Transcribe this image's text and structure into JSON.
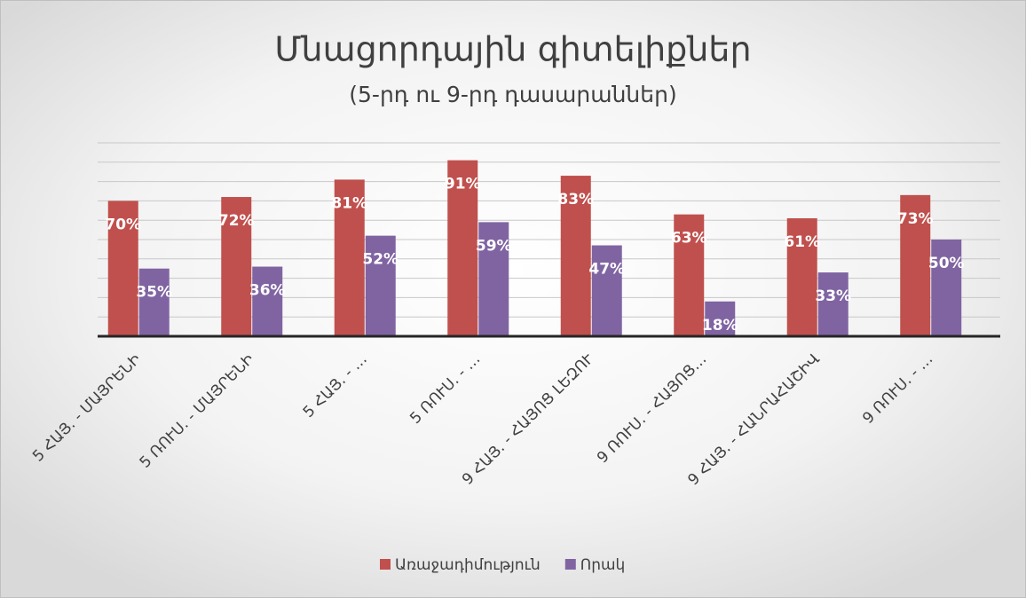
{
  "chart_data": {
    "type": "bar",
    "title": "Մնացորդային գիտելիքներ",
    "subtitle": "(5-րդ ու 9-րդ դասարաններ)",
    "categories": [
      "5 ՀԱՅ. - ՄԱՅՐԵՆԻ",
      "5 ՌՈՒՍ. - ՄԱՅՐԵՆԻ",
      "5 ՀԱՅ. - …",
      "5 ՌՈՒՍ. - …",
      "9 ՀԱՅ. - ՀԱՅՈՑ ԼԵԶՈՒ",
      "9 ՌՈՒՍ. - ՀԱՅՈՑ…",
      "9 ՀԱՅ. - ՀԱՆՐԱՀԱՇԻՎ",
      "9 ՌՈՒՍ. - …"
    ],
    "series": [
      {
        "name": "Առաջադիմություն",
        "color": "#c0504d",
        "values": [
          70,
          72,
          81,
          91,
          83,
          63,
          61,
          73
        ],
        "value_labels": [
          "70%",
          "72%",
          "81%",
          "91%",
          "83%",
          "63%",
          "61%",
          "73%"
        ]
      },
      {
        "name": "Որակ",
        "color": "#8064a2",
        "values": [
          35,
          36,
          52,
          59,
          47,
          18,
          33,
          50
        ],
        "value_labels": [
          "35%",
          "36%",
          "52%",
          "59%",
          "47%",
          "18%",
          "33%",
          "50%"
        ]
      }
    ],
    "ylim": [
      0,
      100
    ],
    "yticks": [
      0,
      10,
      20,
      30,
      40,
      50,
      60,
      70,
      80,
      90,
      100
    ],
    "grid": true,
    "legend": "bottom"
  }
}
